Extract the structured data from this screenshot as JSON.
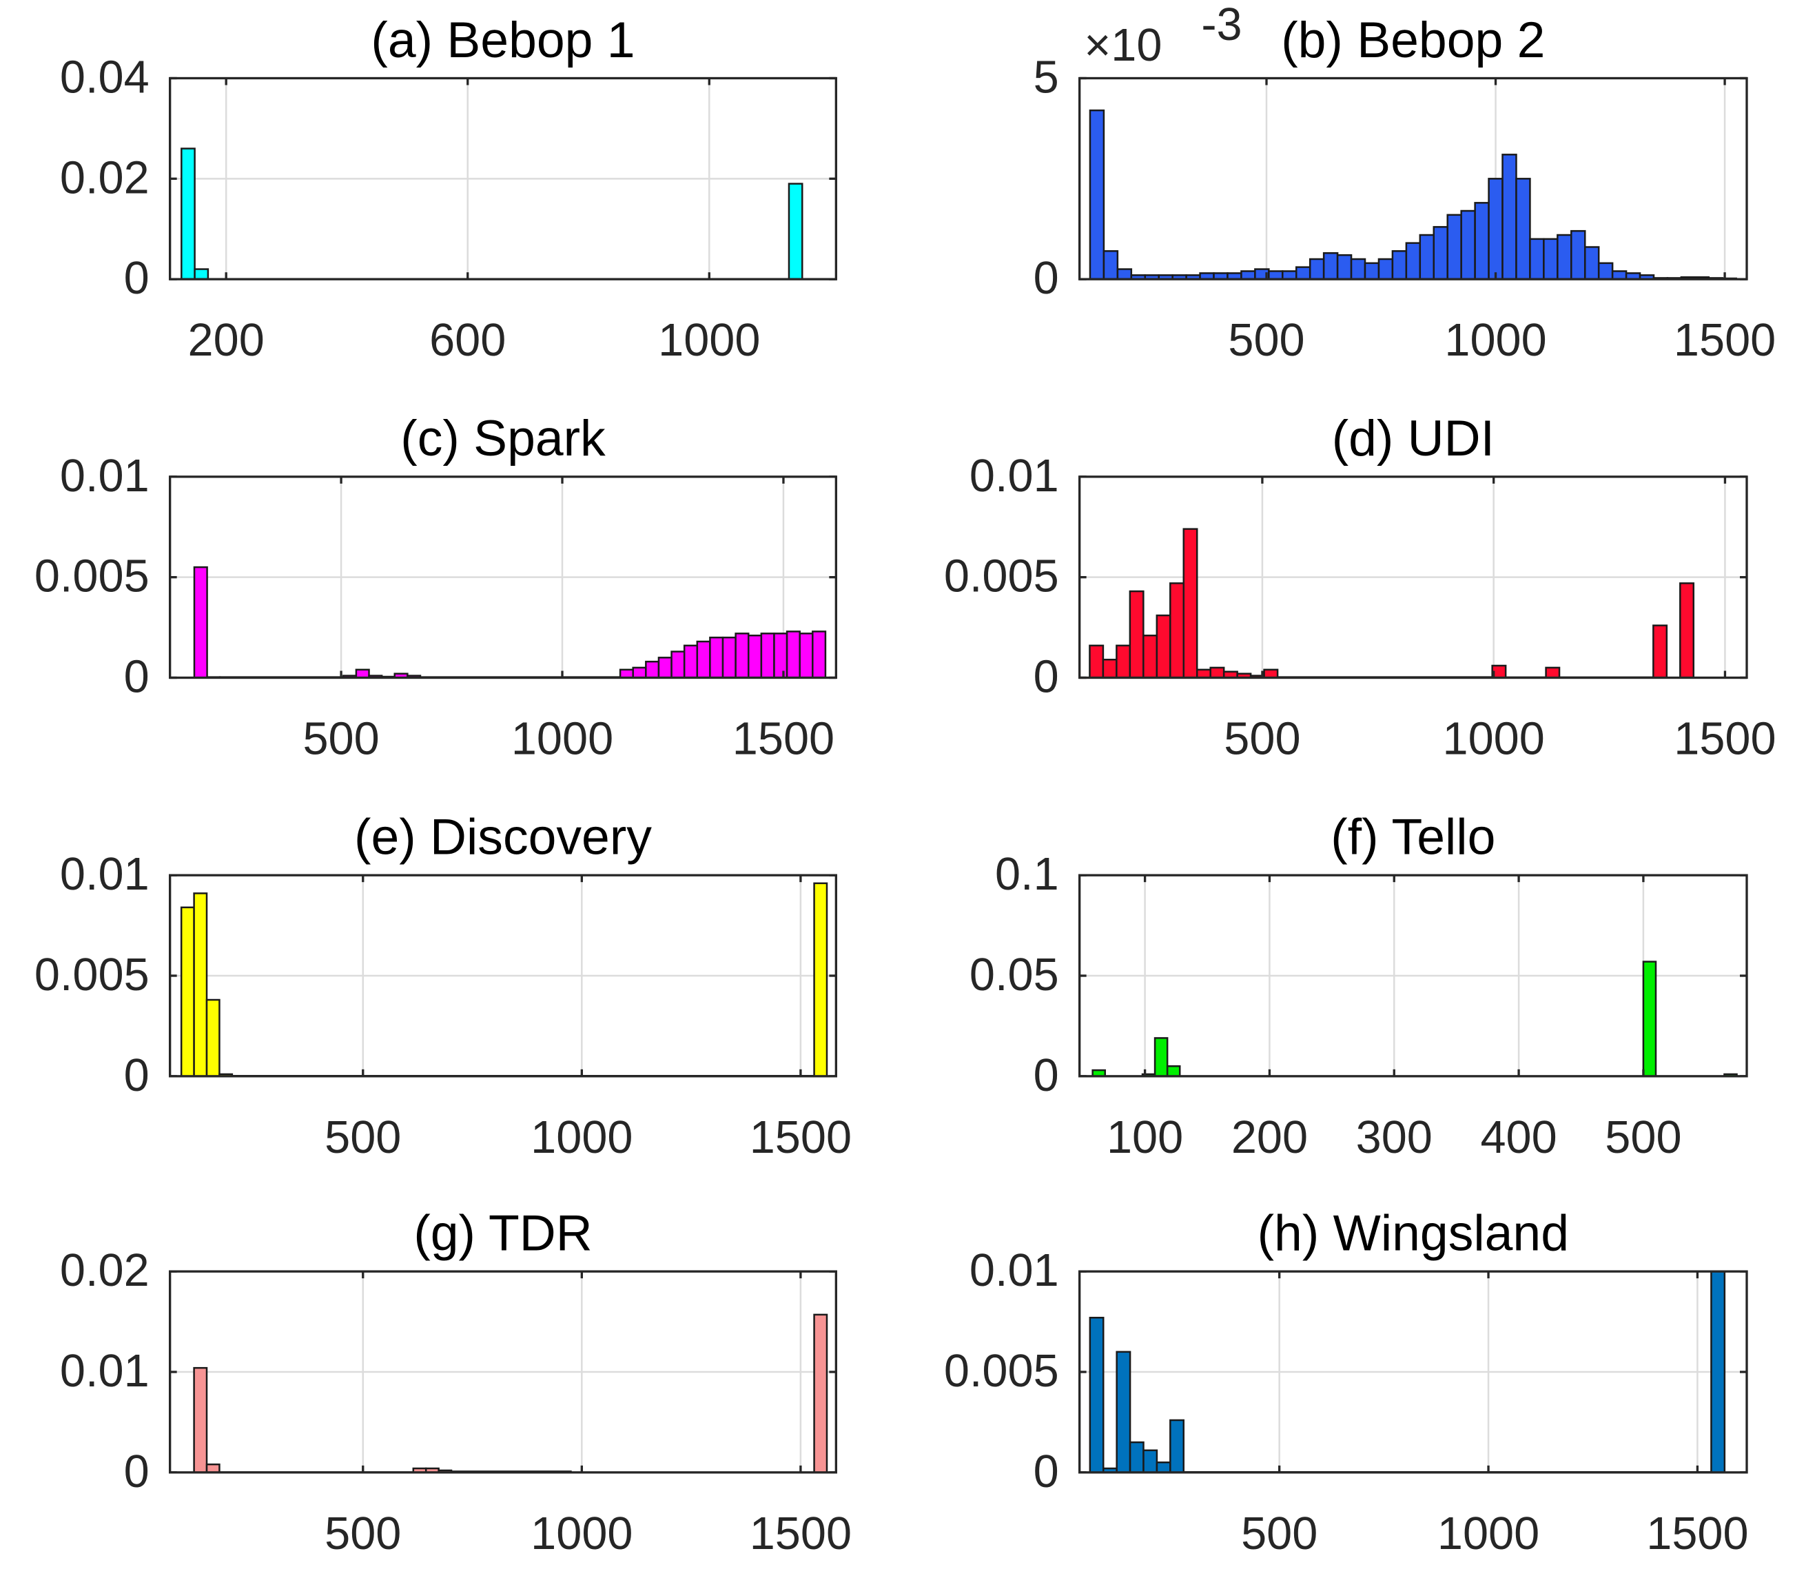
{
  "chart_data": [
    {
      "type": "histogram",
      "title": "(a) Bebop 1",
      "color": "#00ffff",
      "bins": [
        126,
        148,
        170,
        1132,
        1154
      ],
      "counts": [
        0.026,
        0.002,
        0,
        0.019
      ],
      "xlim": [
        107,
        1210
      ],
      "ylim": [
        0,
        0.04
      ],
      "xticks": [
        200,
        600,
        1000
      ],
      "yticks": [
        0,
        0.02,
        0.04
      ],
      "grid": true
    },
    {
      "type": "histogram",
      "title": "(b) Bebop 2",
      "color": "#2b5cf0",
      "y_exponent": {
        "base": "×10",
        "power": "-3"
      },
      "bins": [
        115,
        145,
        175,
        205,
        235,
        265,
        295,
        325,
        355,
        385,
        415,
        445,
        475,
        505,
        535,
        565,
        595,
        625,
        655,
        685,
        715,
        745,
        775,
        805,
        835,
        865,
        895,
        925,
        955,
        985,
        1015,
        1045,
        1075,
        1105,
        1135,
        1165,
        1195,
        1225,
        1255,
        1285,
        1315,
        1345,
        1375,
        1405,
        1435,
        1465,
        1495,
        1525
      ],
      "counts": [
        0.0042,
        0.0007,
        0.00025,
        0.0001,
        0.0001,
        0.0001,
        0.0001,
        0.0001,
        0.00015,
        0.00015,
        0.00015,
        0.0002,
        0.00025,
        0.0002,
        0.0002,
        0.0003,
        0.0005,
        0.00065,
        0.0006,
        0.0005,
        0.0004,
        0.0005,
        0.0007,
        0.0009,
        0.0011,
        0.0013,
        0.0016,
        0.0017,
        0.0019,
        0.0025,
        0.0031,
        0.0025,
        0.001,
        0.001,
        0.0011,
        0.0012,
        0.0008,
        0.0004,
        0.0002,
        0.00015,
        0.0001,
        3e-05,
        3e-05,
        5e-05,
        5e-05,
        3e-05,
        2e-05
      ],
      "xlim": [
        92,
        1548
      ],
      "ylim": [
        0,
        0.005
      ],
      "xticks": [
        500,
        1000,
        1500
      ],
      "yticks": [
        0,
        {
          "value": 0.005,
          "label": "5"
        }
      ],
      "grid": true
    },
    {
      "type": "histogram",
      "title": "(c) Spark",
      "color": "#ff00ff",
      "bins": [
        168,
        197,
        226,
        505,
        534,
        563,
        592,
        621,
        650,
        679,
        1131,
        1160,
        1189,
        1218,
        1247,
        1276,
        1305,
        1334,
        1363,
        1392,
        1421,
        1450,
        1479,
        1508,
        1537,
        1566,
        1595
      ],
      "counts": [
        0.0055,
        3e-05,
        3e-05,
        0.0001,
        0.0004,
        0.0001,
        5e-05,
        0.0002,
        0.0001,
        3e-05,
        0.0004,
        0.0005,
        0.0008,
        0.001,
        0.0013,
        0.0016,
        0.0018,
        0.002,
        0.002,
        0.0022,
        0.0021,
        0.0022,
        0.0022,
        0.0023,
        0.0022,
        0.0023
      ],
      "xlim": [
        113,
        1619
      ],
      "ylim": [
        0,
        0.01
      ],
      "xticks": [
        500,
        1000,
        1500
      ],
      "yticks": [
        0,
        0.005,
        0.01
      ],
      "grid": true
    },
    {
      "type": "histogram",
      "title": "(d) UDI",
      "color": "#ff0a2e",
      "bins": [
        127,
        156,
        185,
        214,
        243,
        272,
        301,
        330,
        359,
        388,
        417,
        446,
        475,
        504,
        533,
        997,
        1026,
        1113,
        1142,
        1345,
        1374,
        1403,
        1432
      ],
      "counts": [
        0.0016,
        0.0009,
        0.0016,
        0.0043,
        0.0021,
        0.0031,
        0.0047,
        0.0074,
        0.0004,
        0.0005,
        0.0003,
        0.0002,
        0.0001,
        0.0004,
        3e-05,
        0.0006,
        2e-05,
        0.0005,
        2e-05,
        0.0026,
        0,
        0.0047
      ],
      "xlim": [
        105,
        1547
      ],
      "ylim": [
        0,
        0.01
      ],
      "xticks": [
        500,
        1000,
        1500
      ],
      "yticks": [
        0,
        0.005,
        0.01
      ],
      "grid": true
    },
    {
      "type": "histogram",
      "title": "(e) Discovery",
      "color": "#ffff00",
      "bins": [
        85,
        114,
        143,
        172,
        201,
        1531,
        1560
      ],
      "counts": [
        0.0084,
        0.0091,
        0.0038,
        0.0001,
        2e-05,
        0.0096
      ],
      "xlim": [
        59,
        1581
      ],
      "ylim": [
        0,
        0.01
      ],
      "xticks": [
        500,
        1000,
        1500
      ],
      "yticks": [
        0,
        0.005,
        0.01
      ],
      "grid": true
    },
    {
      "type": "histogram",
      "title": "(f) Tello",
      "color": "#00ee00",
      "bins": [
        58,
        68,
        98,
        108,
        118,
        128,
        500,
        510,
        565,
        575
      ],
      "counts": [
        0.003,
        0,
        0.001,
        0.019,
        0.005,
        0,
        0.057,
        0,
        0.001
      ],
      "xlim": [
        47.5,
        583
      ],
      "ylim": [
        0,
        0.1
      ],
      "xticks": [
        100,
        200,
        300,
        400,
        500
      ],
      "yticks": [
        0,
        0.05,
        0.1
      ],
      "grid": true
    },
    {
      "type": "histogram",
      "title": "(g) TDR",
      "color": "#f79494",
      "bins": [
        114,
        143,
        172,
        615,
        644,
        673,
        702,
        975,
        1531,
        1560
      ],
      "counts": [
        0.0104,
        0.0008,
        2e-05,
        0.0004,
        0.0004,
        0.0002,
        0.0001,
        0,
        0.0157
      ],
      "xlim": [
        59,
        1581
      ],
      "ylim": [
        0,
        0.02
      ],
      "xticks": [
        500,
        1000,
        1500
      ],
      "yticks": [
        0,
        0.01,
        0.02
      ],
      "grid": true
    },
    {
      "type": "histogram",
      "title": "(h) Wingsland",
      "color": "#0072bd",
      "bins": [
        47,
        79,
        111,
        143,
        175,
        207,
        239,
        271,
        1533,
        1565
      ],
      "counts": [
        0.0077,
        0.0002,
        0.006,
        0.0015,
        0.0011,
        0.0005,
        0.0026,
        2e-05,
        0.01
      ],
      "xlim": [
        22,
        1618
      ],
      "ylim": [
        0,
        0.01
      ],
      "xticks": [
        500,
        1000,
        1500
      ],
      "yticks": [
        0,
        0.005,
        0.01
      ],
      "grid": true
    }
  ]
}
